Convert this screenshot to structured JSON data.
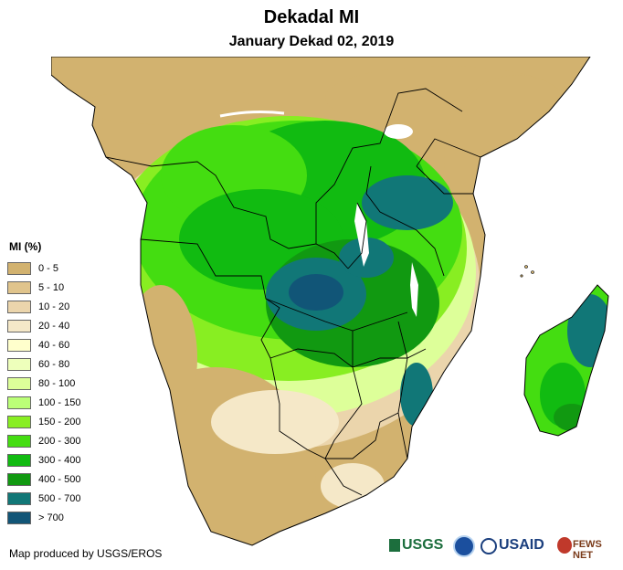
{
  "title": "Dekadal MI",
  "subtitle": "January Dekad 02, 2019",
  "legend": {
    "title": "MI (%)",
    "items": [
      {
        "label": "0 - 5",
        "color": "#d2b26f"
      },
      {
        "label": "5 - 10",
        "color": "#e0c48c"
      },
      {
        "label": "10 - 20",
        "color": "#ebd5ac"
      },
      {
        "label": "20 - 40",
        "color": "#f5e8c8"
      },
      {
        "label": "40 - 60",
        "color": "#ffffcc"
      },
      {
        "label": "60 - 80",
        "color": "#eeffbb"
      },
      {
        "label": "80 - 100",
        "color": "#ddff99"
      },
      {
        "label": "100 - 150",
        "color": "#bbff77"
      },
      {
        "label": "150 - 200",
        "color": "#88ee22"
      },
      {
        "label": "200 - 300",
        "color": "#44dd11"
      },
      {
        "label": "300 - 400",
        "color": "#11bb11"
      },
      {
        "label": "400 - 500",
        "color": "#119911"
      },
      {
        "label": "500 - 700",
        "color": "#117777"
      },
      {
        "label": "> 700",
        "color": "#115577"
      }
    ]
  },
  "credit": "Map produced by USGS/EROS",
  "logos": {
    "usgs": "USGS",
    "usaid": "USAID",
    "fewsnet": "FEWS NET"
  },
  "colors": {
    "ocean": "#ffffff",
    "border": "#000000"
  }
}
